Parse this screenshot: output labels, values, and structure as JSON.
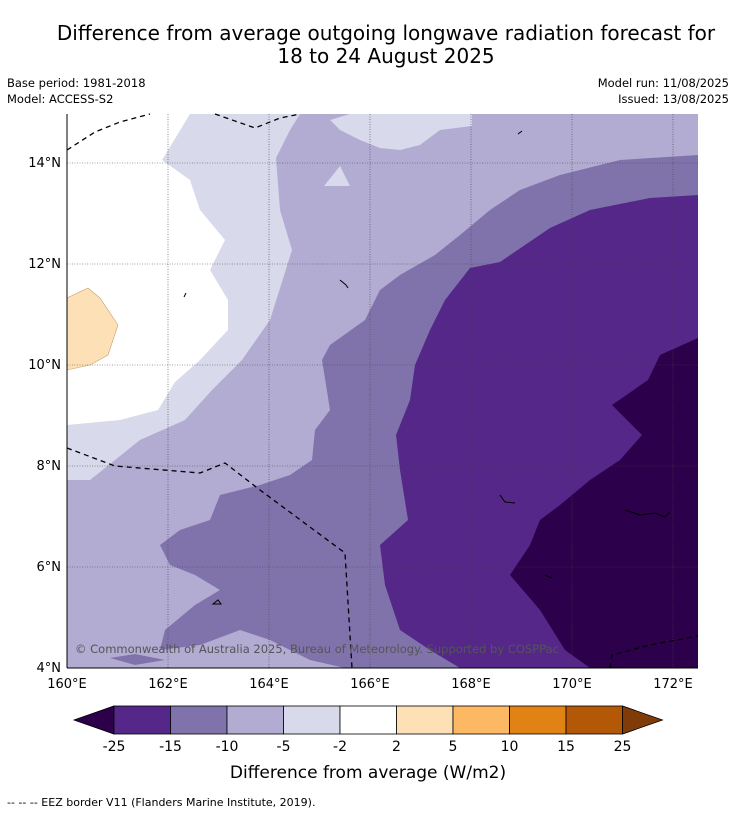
{
  "title": "Difference from average outgoing longwave radiation forecast for 18 to 24 August 2025",
  "title_lines": [
    "Difference from average outgoing longwave radiation forecast for",
    "18 to 24 August 2025"
  ],
  "base_period": "Base period: 1981-2018",
  "model": "Model: ACCESS-S2",
  "model_run": "Model run: 11/08/2025",
  "issued": "Issued: 13/08/2025",
  "copyright": "© Commonwealth of Australia 2025, Bureau of Meteorology. Supported by COSPPac",
  "map": {
    "lon_range": [
      160,
      172.5
    ],
    "lat_range": [
      4,
      15
    ],
    "lon_ticks": [
      "160°E",
      "162°E",
      "164°E",
      "166°E",
      "168°E",
      "170°E",
      "172°E"
    ],
    "lat_ticks": [
      "4°N",
      "6°N",
      "8°N",
      "10°N",
      "12°N",
      "14°N"
    ]
  },
  "colorbar": {
    "label": "Difference from average (W/m2)",
    "ticks": [
      "-25",
      "-15",
      "-10",
      "-5",
      "-2",
      "2",
      "5",
      "10",
      "15",
      "25"
    ],
    "colors": [
      "#2d004b",
      "#542788",
      "#8073ac",
      "#b2abd2",
      "#d8daeb",
      "#ffffff",
      "#fee0b6",
      "#fdb863",
      "#e08214",
      "#b35806",
      "#7f3b08"
    ]
  },
  "footer": "--  --  -- EEZ border V11 (Flanders Marine Institute, 2019)."
}
